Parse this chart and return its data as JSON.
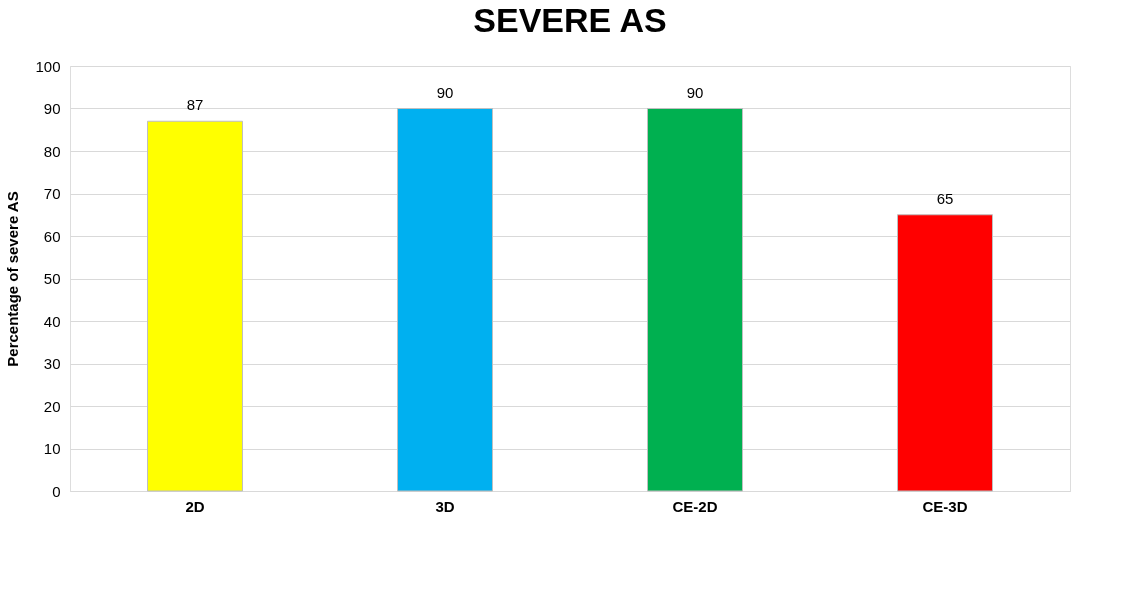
{
  "chart_data": {
    "type": "bar",
    "title": "SEVERE AS",
    "ylabel": "Percentage of severe AS",
    "categories": [
      "2D",
      "3D",
      "CE-2D",
      "CE-3D"
    ],
    "values": [
      87,
      90,
      90,
      65
    ],
    "colors": [
      "#ffff00",
      "#00b0f0",
      "#00b050",
      "#ff0000"
    ],
    "ylim": [
      0,
      100
    ],
    "yticks": [
      0,
      10,
      20,
      30,
      40,
      50,
      60,
      70,
      80,
      90,
      100
    ],
    "grid": "y",
    "data_labels": true
  }
}
